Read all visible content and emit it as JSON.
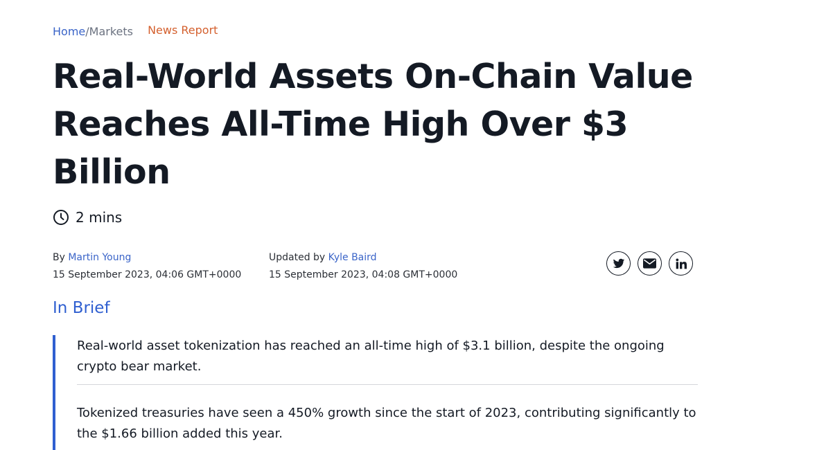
{
  "breadcrumb": {
    "home": "Home",
    "separator": "/",
    "markets": "Markets",
    "tag": "News Report"
  },
  "article": {
    "title": "Real-World Assets On-Chain Value Reaches All-Time High Over $3 Billion",
    "read_time": "2 mins",
    "author_prefix": "By",
    "author": "Martin Young",
    "published": "15 September 2023, 04:06 GMT+0000",
    "updated_prefix": "Updated by",
    "updater": "Kyle Baird",
    "updated": "15 September 2023, 04:08 GMT+0000"
  },
  "share": {
    "icons": [
      "twitter-icon",
      "email-icon",
      "linkedin-icon"
    ]
  },
  "brief": {
    "heading": "In Brief",
    "items": [
      "Real-world asset tokenization has reached an all-time high of $3.1 billion, despite the ongoing crypto bear market.",
      "Tokenized treasuries have seen a 450% growth since the start of 2023, contributing significantly to the $1.66 billion added this year."
    ]
  },
  "colors": {
    "link": "#3a64c8",
    "tag": "#d4602e",
    "accent": "#2f5fd0",
    "text": "#141a24"
  }
}
